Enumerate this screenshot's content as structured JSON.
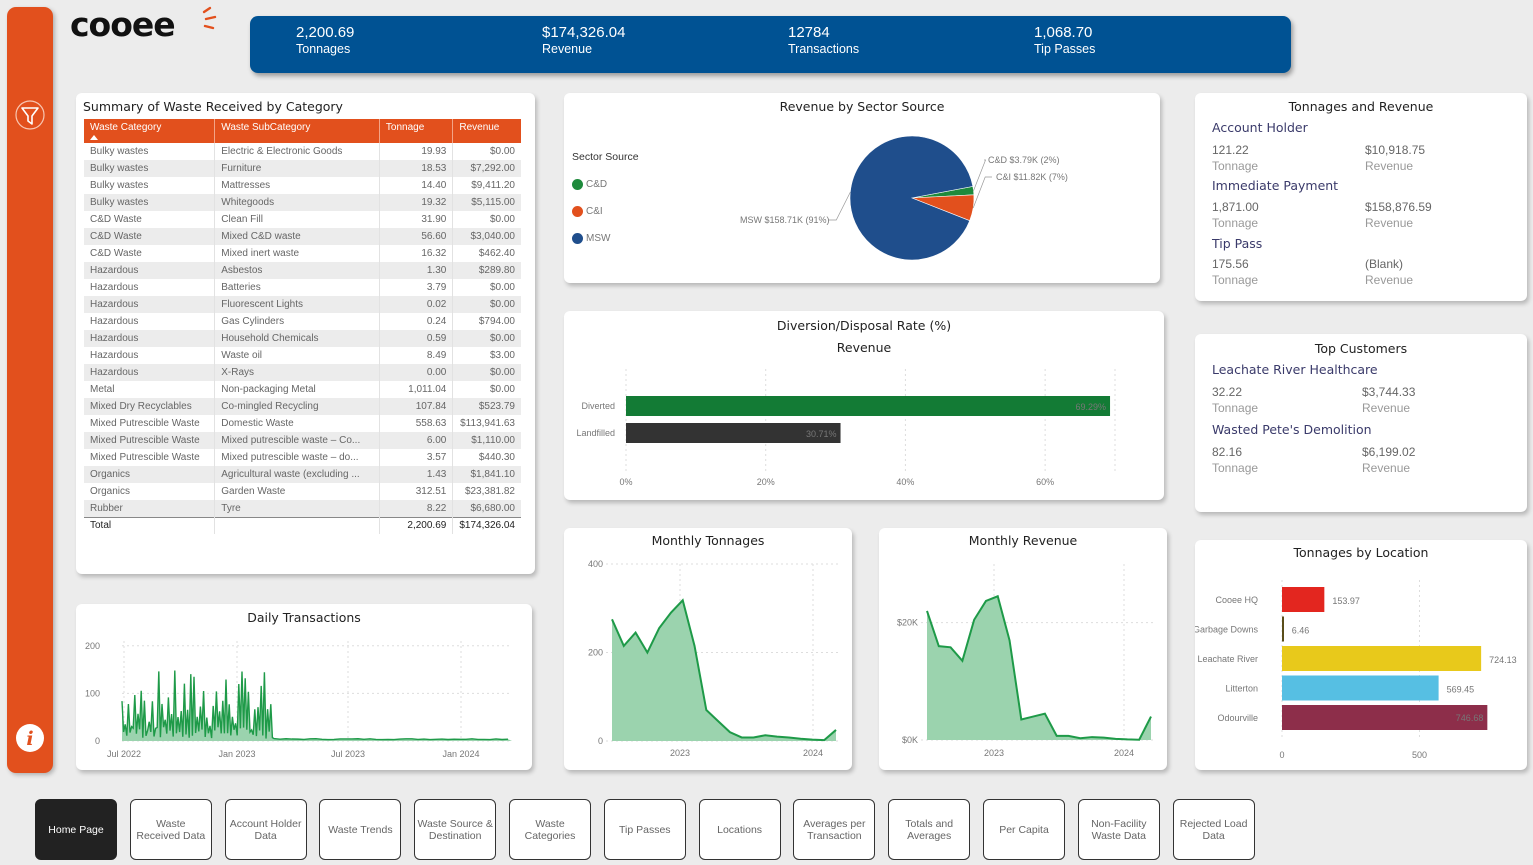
{
  "logo": {
    "text": "cooee"
  },
  "kpis": [
    {
      "value": "2,200.69",
      "label": "Tonnages"
    },
    {
      "value": "$174,326.04",
      "label": "Revenue"
    },
    {
      "value": "12784",
      "label": "Transactions"
    },
    {
      "value": "1,068.70",
      "label": "Tip Passes"
    }
  ],
  "sidebar": {
    "filter_icon": "filter-icon",
    "info_icon": "info-icon"
  },
  "summary": {
    "title": "Summary of Waste Received by Category",
    "columns": [
      "Waste Category",
      "Waste SubCategory",
      "Tonnage",
      "Revenue"
    ],
    "rows": [
      [
        "Bulky wastes",
        "Electric & Electronic Goods",
        "19.93",
        "$0.00"
      ],
      [
        "Bulky wastes",
        "Furniture",
        "18.53",
        "$7,292.00"
      ],
      [
        "Bulky wastes",
        "Mattresses",
        "14.40",
        "$9,411.20"
      ],
      [
        "Bulky wastes",
        "Whitegoods",
        "19.32",
        "$5,115.00"
      ],
      [
        "C&D Waste",
        "Clean Fill",
        "31.90",
        "$0.00"
      ],
      [
        "C&D Waste",
        "Mixed C&D waste",
        "56.60",
        "$3,040.00"
      ],
      [
        "C&D Waste",
        "Mixed inert waste",
        "16.32",
        "$462.40"
      ],
      [
        "Hazardous",
        "Asbestos",
        "1.30",
        "$289.80"
      ],
      [
        "Hazardous",
        "Batteries",
        "3.79",
        "$0.00"
      ],
      [
        "Hazardous",
        "Fluorescent Lights",
        "0.02",
        "$0.00"
      ],
      [
        "Hazardous",
        "Gas Cylinders",
        "0.24",
        "$794.00"
      ],
      [
        "Hazardous",
        "Household Chemicals",
        "0.59",
        "$0.00"
      ],
      [
        "Hazardous",
        "Waste oil",
        "8.49",
        "$3.00"
      ],
      [
        "Hazardous",
        "X-Rays",
        "0.00",
        "$0.00"
      ],
      [
        "Metal",
        "Non-packaging Metal",
        "1,011.04",
        "$0.00"
      ],
      [
        "Mixed Dry Recyclables",
        "Co-mingled Recycling",
        "107.84",
        "$523.79"
      ],
      [
        "Mixed Putrescible Waste",
        "Domestic Waste",
        "558.63",
        "$113,941.63"
      ],
      [
        "Mixed Putrescible Waste",
        "Mixed putrescible waste – Co...",
        "6.00",
        "$1,110.00"
      ],
      [
        "Mixed Putrescible Waste",
        "Mixed putrescible waste – do...",
        "3.57",
        "$440.30"
      ],
      [
        "Organics",
        "Agricultural waste (excluding ...",
        "1.43",
        "$1,841.10"
      ],
      [
        "Organics",
        "Garden Waste",
        "312.51",
        "$23,381.82"
      ],
      [
        "Rubber",
        "Tyre",
        "8.22",
        "$6,680.00"
      ]
    ],
    "total": [
      "Total",
      "",
      "2,200.69",
      "$174,326.04"
    ]
  },
  "sector": {
    "title": "Revenue by Sector Source",
    "legend_title": "Sector Source",
    "colors": [
      "#1e8a3c",
      "#e2501d",
      "#1f4e8c"
    ],
    "chart_data": {
      "type": "pie",
      "labels": [
        "C&D",
        "C&I",
        "MSW"
      ],
      "values": [
        3.79,
        11.82,
        158.71
      ],
      "percent": [
        2,
        7,
        91
      ],
      "data_labels": [
        "C&D $3.79K (2%)",
        "C&I $11.82K (7%)",
        "MSW $158.71K (91%)"
      ]
    }
  },
  "tonrev": {
    "title": "Tonnages and Revenue",
    "blocks": [
      {
        "header": "Account Holder",
        "tonnage": "121.22",
        "revenue": "$10,918.75"
      },
      {
        "header": "Immediate Payment",
        "tonnage": "1,871.00",
        "revenue": "$158,876.59"
      },
      {
        "header": "Tip Pass",
        "tonnage": "175.56",
        "revenue": "(Blank)"
      }
    ],
    "tonnage_label": "Tonnage",
    "revenue_label": "Revenue"
  },
  "diversion": {
    "title": "Diversion/Disposal Rate (%)",
    "subtitle": "Revenue",
    "chart_data": {
      "type": "bar",
      "orientation": "horizontal",
      "categories": [
        "Diverted",
        "Landfilled"
      ],
      "values": [
        69.29,
        30.71
      ],
      "data_labels": [
        "69.29%",
        "30.71%"
      ],
      "colors": [
        "#137b35",
        "#333333"
      ],
      "xlim": [
        0,
        70
      ],
      "ticks": [
        "0%",
        "20%",
        "40%",
        "60%"
      ]
    }
  },
  "top_customers": {
    "title": "Top Customers",
    "blocks": [
      {
        "header": "Leachate River Healthcare",
        "tonnage": "32.22",
        "revenue": "$3,744.33"
      },
      {
        "header": "Wasted Pete's Demolition",
        "tonnage": "82.16",
        "revenue": "$6,199.02"
      }
    ],
    "tonnage_label": "Tonnage",
    "revenue_label": "Revenue"
  },
  "daily": {
    "title": "Daily Transactions",
    "chart_data": {
      "type": "area",
      "x_ticks": [
        "Jul 2022",
        "Jan 2023",
        "Jul 2023",
        "Jan 2024"
      ],
      "y_ticks": [
        "0",
        "100",
        "200"
      ],
      "ylim": [
        0,
        210
      ],
      "note": "daily counts oscillate ~5–150 from Jul 2022 to Feb 2023, then ~3–5 thereafter"
    }
  },
  "monthly_ton": {
    "title": "Monthly Tonnages",
    "chart_data": {
      "type": "area",
      "x": [
        "2022-07",
        "2022-08",
        "2022-09",
        "2022-10",
        "2022-11",
        "2022-12",
        "2023-01",
        "2023-02",
        "2023-03",
        "2023-04",
        "2023-05",
        "2023-06",
        "2023-07",
        "2023-08",
        "2023-09",
        "2023-10",
        "2023-11",
        "2023-12",
        "2024-01",
        "2024-02"
      ],
      "values": [
        275,
        215,
        245,
        200,
        255,
        290,
        318,
        215,
        70,
        45,
        20,
        8,
        8,
        13,
        10,
        8,
        5,
        3,
        2,
        25
      ],
      "x_ticks": [
        "2023",
        "2024"
      ],
      "y_ticks": [
        "0",
        "200",
        "400"
      ],
      "ylim": [
        0,
        400
      ]
    }
  },
  "monthly_rev": {
    "title": "Monthly Revenue",
    "chart_data": {
      "type": "area",
      "x": [
        "2022-07",
        "2022-08",
        "2022-09",
        "2022-10",
        "2022-11",
        "2022-12",
        "2023-01",
        "2023-02",
        "2023-03",
        "2023-04",
        "2023-05",
        "2023-06",
        "2023-07",
        "2023-08",
        "2023-09",
        "2023-10",
        "2023-11",
        "2023-12",
        "2024-01",
        "2024-02"
      ],
      "values": [
        22000,
        16000,
        15800,
        13500,
        20500,
        23700,
        24500,
        17000,
        3500,
        4000,
        4500,
        700,
        700,
        300,
        500,
        400,
        200,
        100,
        50,
        4000
      ],
      "x_ticks": [
        "2023",
        "2024"
      ],
      "y_ticks": [
        "$0K",
        "$20K"
      ],
      "ylim": [
        0,
        30000
      ]
    }
  },
  "location": {
    "title": "Tonnages by Location",
    "chart_data": {
      "type": "bar",
      "orientation": "horizontal",
      "categories": [
        "Cooee HQ",
        "Garbage Downs",
        "Leachate River",
        "Litterton",
        "Odourville"
      ],
      "values": [
        153.97,
        6.46,
        724.13,
        569.45,
        746.68
      ],
      "data_labels": [
        "153.97",
        "6.46",
        "724.13",
        "569.45",
        "746.68"
      ],
      "colors": [
        "#e3261f",
        "#5a4e1a",
        "#e8c91b",
        "#56bfe3",
        "#8d2e4a"
      ],
      "xlim": [
        0,
        800
      ],
      "ticks": [
        "0",
        "500"
      ]
    }
  },
  "nav": [
    "Home Page",
    "Waste Received Data",
    "Account Holder Data",
    "Waste Trends",
    "Waste Source & Destination",
    "Waste Categories",
    "Tip Passes",
    "Locations",
    "Averages per Transaction",
    "Totals and Averages",
    "Per Capita",
    "Non-Facility Waste Data",
    "Rejected Load Data"
  ]
}
